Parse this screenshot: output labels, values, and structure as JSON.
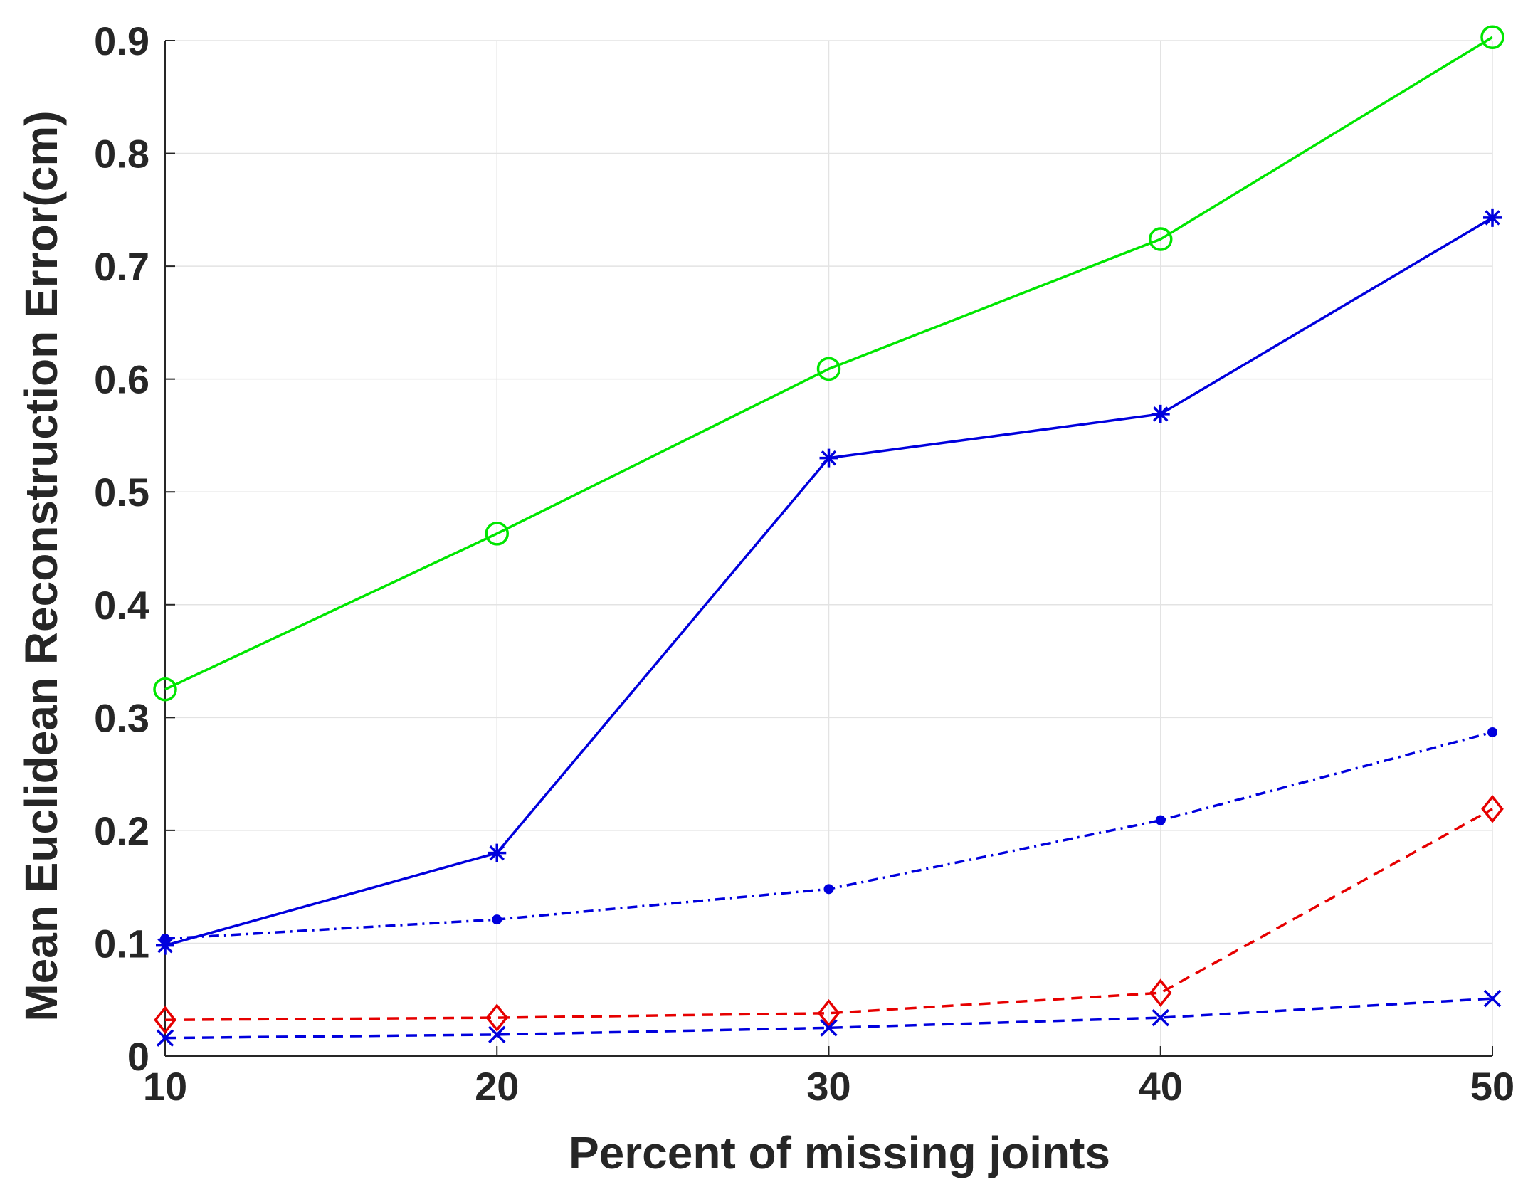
{
  "chart_data": {
    "type": "line",
    "xlabel": "Percent of missing joints",
    "ylabel": "Mean Euclidean Reconstruction Error(cm)",
    "xlim": [
      10,
      50
    ],
    "ylim": [
      0,
      0.9
    ],
    "xticks": [
      10,
      20,
      30,
      40,
      50
    ],
    "xtick_labels": [
      "10",
      "20",
      "30",
      "40",
      "50"
    ],
    "yticks": [
      0,
      0.1,
      0.2,
      0.3,
      0.4,
      0.5,
      0.6,
      0.7,
      0.8,
      0.9
    ],
    "ytick_labels": [
      "0",
      "0.1",
      "0.2",
      "0.3",
      "0.4",
      "0.5",
      "0.6",
      "0.7",
      "0.8",
      "0.9"
    ],
    "grid": true,
    "legend": "none",
    "x": [
      10,
      20,
      30,
      40,
      50
    ],
    "series": [
      {
        "color": "#00e600",
        "marker": "circle",
        "line_style": "solid",
        "values": [
          0.325,
          0.463,
          0.609,
          0.724,
          0.903
        ]
      },
      {
        "color": "#0000dd",
        "marker": "asterisk",
        "line_style": "solid",
        "values": [
          0.098,
          0.18,
          0.53,
          0.569,
          0.743
        ]
      },
      {
        "color": "#0000dd",
        "marker": "dot",
        "line_style": "dashdot",
        "values": [
          0.104,
          0.121,
          0.148,
          0.209,
          0.287
        ]
      },
      {
        "color": "#e60000",
        "marker": "diamond",
        "line_style": "dashed",
        "values": [
          0.032,
          0.034,
          0.038,
          0.056,
          0.219
        ]
      },
      {
        "color": "#0000dd",
        "marker": "x",
        "line_style": "dashed",
        "values": [
          0.016,
          0.019,
          0.025,
          0.034,
          0.051
        ]
      }
    ]
  }
}
